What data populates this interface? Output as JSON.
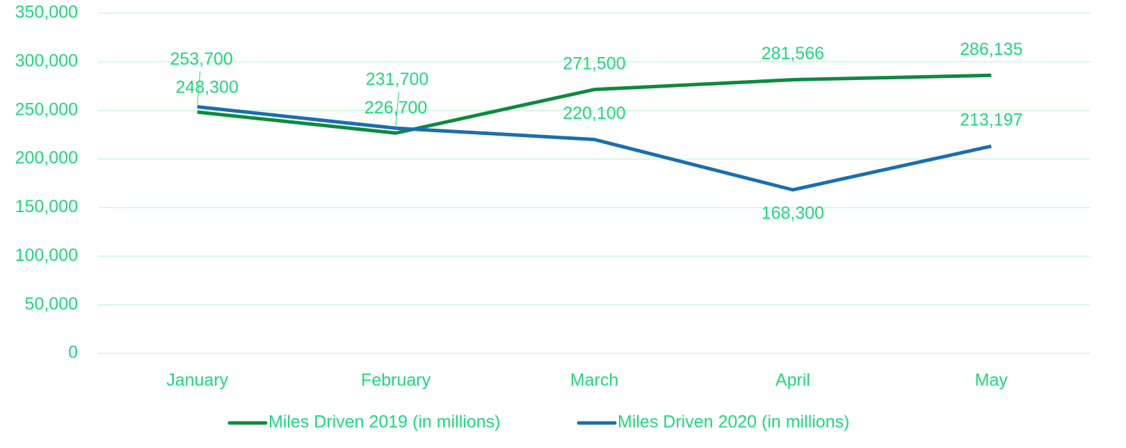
{
  "chart_data": {
    "type": "line",
    "categories": [
      "January",
      "February",
      "March",
      "April",
      "May"
    ],
    "series": [
      {
        "name": "Miles Driven 2019 (in millions)",
        "color": "#0d8a3e",
        "values": [
          248300,
          226700,
          271500,
          281566,
          286135
        ],
        "value_labels": [
          "248,300",
          "226,700",
          "271,500",
          "281,566",
          "286,135"
        ]
      },
      {
        "name": "Miles Driven 2020 (in millions)",
        "color": "#1a6fad",
        "values": [
          253700,
          231700,
          220100,
          168300,
          213197
        ],
        "value_labels": [
          "253,700",
          "231,700",
          "220,100",
          "168,300",
          "213,197"
        ]
      }
    ],
    "ylim": [
      0,
      350000
    ],
    "yticks": [
      0,
      {
        "value": 50000,
        "label": "50,000"
      },
      {
        "value": 100000,
        "label": "100,000"
      },
      {
        "value": 150000,
        "label": "150,000"
      },
      {
        "value": 200000,
        "label": "200,000"
      },
      {
        "value": 250000,
        "label": "250,000"
      },
      {
        "value": 300000,
        "label": "300,000"
      },
      {
        "value": 350000,
        "label": "350,000"
      }
    ],
    "grid": true,
    "legend": "bottom"
  }
}
